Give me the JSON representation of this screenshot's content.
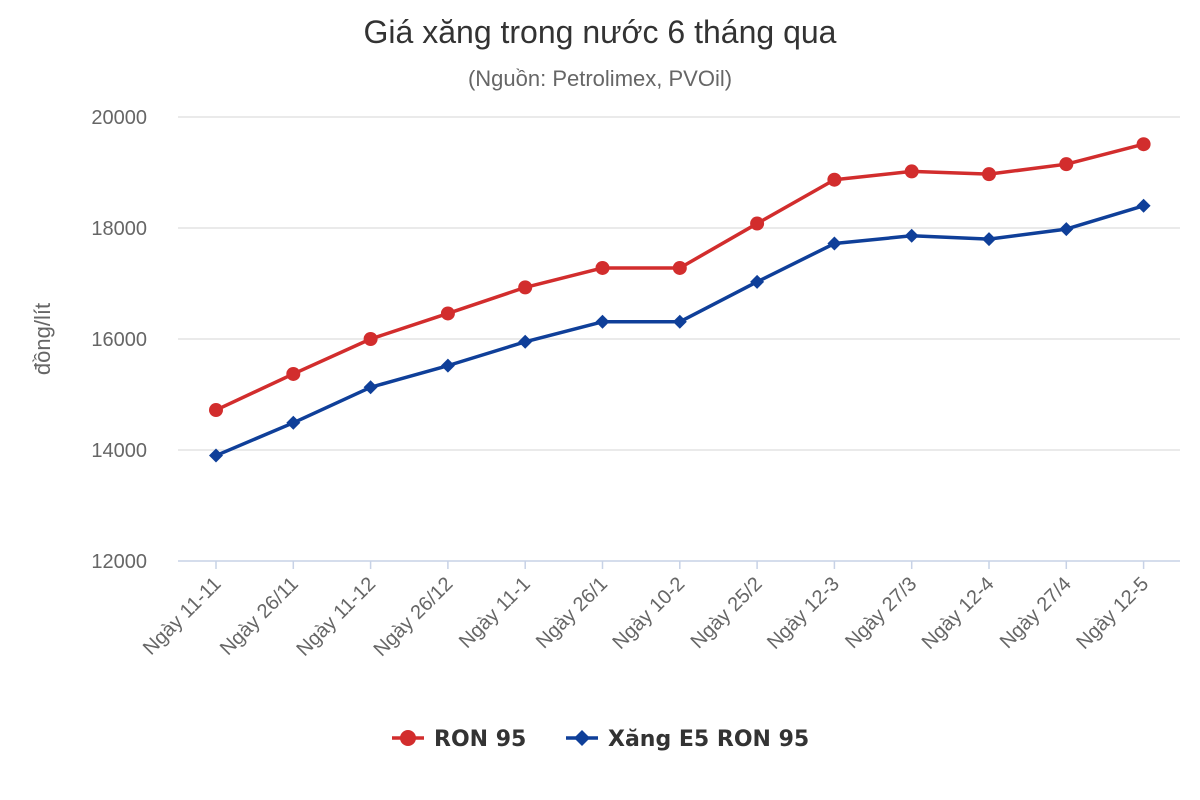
{
  "chart_data": {
    "type": "line",
    "title": "Giá xăng trong nước 6 tháng qua",
    "subtitle": "(Nguồn: Petrolimex, PVOil)",
    "xlabel": "",
    "ylabel": "đồng/lít",
    "categories": [
      "Ngày 11-11",
      "Ngày 26/11",
      "Ngày 11-12",
      "Ngày 26/12",
      "Ngày 11-1",
      "Ngày 26/1",
      "Ngày 10-2",
      "Ngày 25/2",
      "Ngày 12-3",
      "Ngày 27/3",
      "Ngày 12-4",
      "Ngày 27/4",
      "Ngày 12-5"
    ],
    "ylim": [
      12000,
      20000
    ],
    "yticks": [
      12000,
      14000,
      16000,
      18000,
      20000
    ],
    "grid": true,
    "legend_position": "bottom",
    "series": [
      {
        "name": "RON 95",
        "color": "#d22d2d",
        "marker": "circle",
        "values": [
          14720,
          15370,
          16000,
          16460,
          16930,
          17280,
          17280,
          18080,
          18870,
          19020,
          18970,
          19150,
          19510
        ]
      },
      {
        "name": "Xăng E5 RON 95",
        "color": "#0f3f99",
        "marker": "diamond",
        "values": [
          13900,
          14490,
          15130,
          15520,
          15950,
          16310,
          16310,
          17030,
          17720,
          17860,
          17800,
          17980,
          18400
        ]
      }
    ]
  }
}
